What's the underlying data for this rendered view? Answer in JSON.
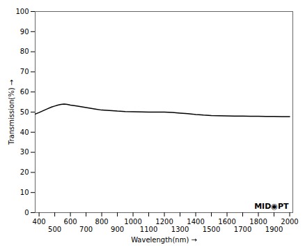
{
  "chart_data": {
    "type": "line",
    "x": [
      375,
      400,
      420,
      450,
      480,
      500,
      520,
      540,
      560,
      580,
      600,
      640,
      680,
      720,
      760,
      800,
      850,
      900,
      950,
      1000,
      1050,
      1100,
      1150,
      1200,
      1250,
      1300,
      1350,
      1380,
      1400,
      1420,
      1450,
      1500,
      1550,
      1600,
      1650,
      1700,
      1750,
      1800,
      1850,
      1900,
      1950,
      2000
    ],
    "values": [
      49.0,
      49.8,
      50.5,
      51.5,
      52.5,
      53.0,
      53.5,
      53.8,
      54.0,
      53.8,
      53.5,
      53.0,
      52.5,
      52.0,
      51.5,
      51.0,
      50.8,
      50.5,
      50.3,
      50.2,
      50.1,
      50.0,
      50.0,
      50.0,
      49.8,
      49.5,
      49.2,
      49.0,
      48.8,
      48.7,
      48.5,
      48.3,
      48.2,
      48.1,
      48.0,
      48.0,
      47.9,
      47.9,
      47.8,
      47.8,
      47.7,
      47.7
    ],
    "xlabel": "Wavelength(nm)",
    "ylabel": "Transmission(%)",
    "xlim": [
      375,
      2020
    ],
    "ylim": [
      0,
      100
    ],
    "xticks": [
      400,
      500,
      600,
      700,
      800,
      900,
      1000,
      1100,
      1200,
      1300,
      1400,
      1500,
      1600,
      1700,
      1800,
      1900,
      2000
    ],
    "yticks": [
      0,
      10,
      20,
      30,
      40,
      50,
      60,
      70,
      80,
      90,
      100
    ],
    "grid": false,
    "annotations": [
      "MID◉PT"
    ]
  }
}
